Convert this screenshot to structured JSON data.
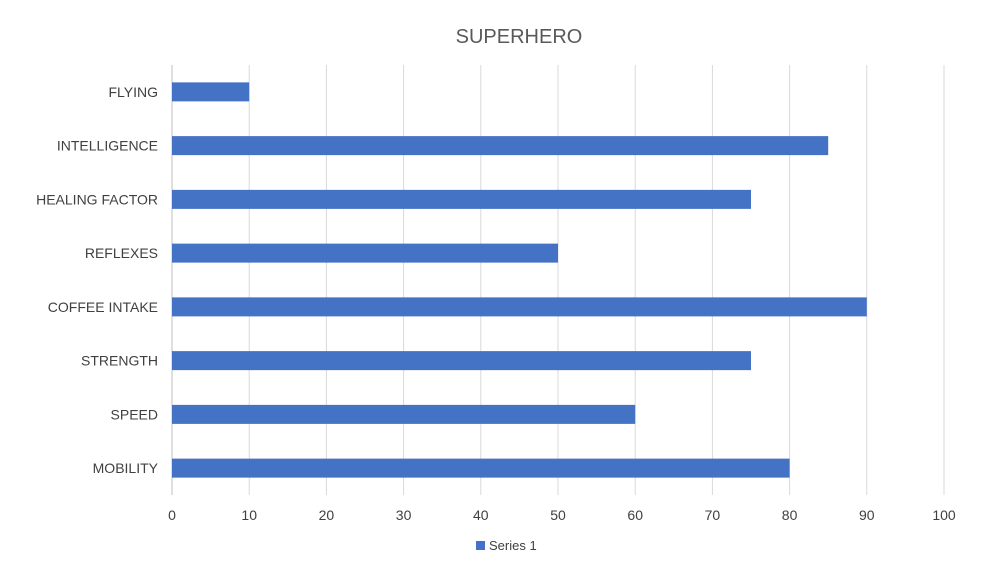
{
  "chart_data": {
    "type": "bar",
    "orientation": "horizontal",
    "title": "SUPERHERO",
    "categories": [
      "FLYING",
      "INTELLIGENCE",
      "HEALING FACTOR",
      "REFLEXES",
      "COFFEE INTAKE",
      "STRENGTH",
      "SPEED",
      "MOBILITY"
    ],
    "series": [
      {
        "name": "Series 1",
        "values": [
          10,
          85,
          75,
          50,
          90,
          75,
          60,
          80
        ],
        "color": "#4472c4"
      }
    ],
    "xlim": [
      0,
      100
    ],
    "x_ticks": [
      0,
      10,
      20,
      30,
      40,
      50,
      60,
      70,
      80,
      90,
      100
    ],
    "grid": "vertical",
    "legend": "bottom-center",
    "colors": {
      "bar": "#4472c4",
      "grid": "#d9d9d9",
      "text": "#404040",
      "title": "#595959"
    }
  }
}
